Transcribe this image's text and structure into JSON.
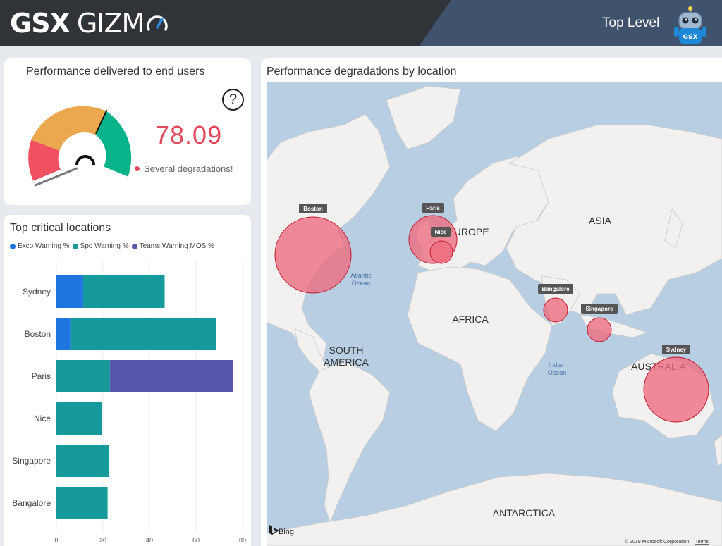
{
  "header": {
    "logo_left": "GSX",
    "logo_right": "GIZM",
    "page_label": "Top Level",
    "robot_badge": "GSX"
  },
  "performance": {
    "title": "Performance delivered to end users",
    "help_label": "?",
    "score": "78.09",
    "score_value": 78.09,
    "status": "Several degradations!",
    "colors": {
      "bad": "#f0505f",
      "medium": "#eba84e",
      "good": "#06b38a",
      "score": "#e2485b"
    }
  },
  "critical": {
    "title": "Top critical locations",
    "legend": [
      {
        "label": "Exco Warning %",
        "color": "#1f74df"
      },
      {
        "label": "Spo Warning %",
        "color": "#16999a"
      },
      {
        "label": "Teams Warning MOS %",
        "color": "#5856ad"
      }
    ]
  },
  "chart_data": {
    "type": "bar",
    "orientation": "horizontal",
    "stacked": true,
    "categories": [
      "Sydney",
      "Boston",
      "Paris",
      "Nice",
      "Singapore",
      "Bangalore"
    ],
    "series": [
      {
        "name": "Exco Warning %",
        "color": "#1f74df",
        "values": [
          11.5,
          6,
          0,
          0,
          0,
          0
        ]
      },
      {
        "name": "Spo Warning %",
        "color": "#16999a",
        "values": [
          35,
          62.5,
          23,
          19.5,
          22.5,
          22
        ]
      },
      {
        "name": "Teams Warning MOS %",
        "color": "#5856ad",
        "values": [
          0,
          0,
          53,
          0,
          0,
          0
        ]
      }
    ],
    "xticks": [
      0,
      20,
      40,
      60,
      80
    ],
    "xlim": [
      0,
      82
    ],
    "grid": true,
    "legend": "top"
  },
  "map": {
    "title": "Performance degradations by location",
    "labels": {
      "europe": "EUROPE",
      "asia": "ASIA",
      "africa": "AFRICA",
      "south_america_1": "SOUTH",
      "south_america_2": "AMERICA",
      "australia": "AUSTRALIA",
      "antarctica": "ANTARCTICA",
      "atlantic_1": "Atlantic",
      "atlantic_2": "Ocean",
      "indian_1": "Indian",
      "indian_2": "Ocean"
    },
    "locations": [
      {
        "name": "Boston"
      },
      {
        "name": "Paris"
      },
      {
        "name": "Nice"
      },
      {
        "name": "Bangalore"
      },
      {
        "name": "Singapore"
      },
      {
        "name": "Sydney"
      }
    ],
    "bing": "Bing",
    "copyright": "© 2019 Microsoft Corporation",
    "terms": "Terms",
    "colors": {
      "water": "#b7cee3",
      "land": "#f2f1ef",
      "bubble": "#ee6b7e"
    }
  }
}
